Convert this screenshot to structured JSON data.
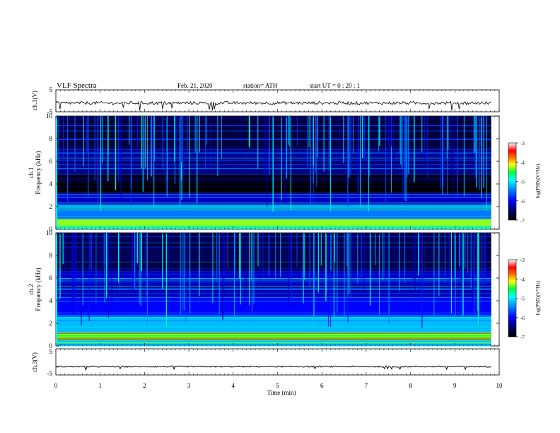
{
  "header": {
    "title": "VLF  Spectra",
    "date": "Feb. 21, 2020",
    "station": "station= ATH",
    "start": "start  UT  =    0  : 20 : 1"
  },
  "chart_data": [
    {
      "type": "line",
      "name": "ch1-waveform",
      "ylabel": "ch.1(V)",
      "ylim": [
        -5,
        5
      ],
      "yticks": [
        "5",
        "-5"
      ],
      "x_range_min": [
        0,
        9.82
      ],
      "level_v": -1.0,
      "noise_v": 0.7
    },
    {
      "type": "heatmap",
      "name": "ch1-spectrogram",
      "ylabel": "ch.1\nFrequency  (kHz)",
      "ylim": [
        0,
        10
      ],
      "yticks": [
        "0",
        "2",
        "4",
        "6",
        "8",
        "10"
      ],
      "colorbar": {
        "label": "log(PSD)(V²/Hz)",
        "ticks": [
          "-3",
          "-4",
          "-5",
          "-6",
          "-7"
        ],
        "range": [
          -7,
          -3
        ]
      },
      "bands_khz": [
        {
          "from": 0.0,
          "to": 0.3,
          "log_psd": -5.0
        },
        {
          "from": 0.3,
          "to": 0.9,
          "log_psd": -4.3
        },
        {
          "from": 0.9,
          "to": 2.2,
          "log_psd": -5.5
        },
        {
          "from": 2.2,
          "to": 3.2,
          "log_psd": -6.2
        },
        {
          "from": 3.2,
          "to": 4.9,
          "log_psd": -7.0
        },
        {
          "from": 4.9,
          "to": 7.0,
          "log_psd": -6.4
        },
        {
          "from": 7.0,
          "to": 10.0,
          "log_psd": -6.7
        }
      ]
    },
    {
      "type": "heatmap",
      "name": "ch2-spectrogram",
      "ylabel": "ch.2\nFrequency  (kHz)",
      "ylim": [
        0,
        10
      ],
      "yticks": [
        "0",
        "2",
        "4",
        "6",
        "8",
        "10"
      ],
      "colorbar": {
        "label": "log(PSD)(V²/Hz)",
        "ticks": [
          "-3",
          "-4",
          "-5",
          "-6",
          "-7"
        ],
        "range": [
          -7,
          -3
        ]
      },
      "bands_khz": [
        {
          "from": 0.0,
          "to": 0.5,
          "log_psd": -5.2
        },
        {
          "from": 0.5,
          "to": 1.2,
          "log_psd": -4.5
        },
        {
          "from": 1.2,
          "to": 2.6,
          "log_psd": -5.2
        },
        {
          "from": 2.6,
          "to": 4.2,
          "log_psd": -6.0
        },
        {
          "from": 4.2,
          "to": 6.6,
          "log_psd": -6.2
        },
        {
          "from": 6.6,
          "to": 10.0,
          "log_psd": -6.6
        }
      ]
    },
    {
      "type": "line",
      "name": "ch3-waveform",
      "ylabel": "ch.3(V)",
      "ylim": [
        -5,
        5
      ],
      "yticks": [
        "5",
        "-5"
      ],
      "x_range_min": [
        0,
        9.82
      ],
      "level_v": -1.8,
      "noise_v": 0.25
    }
  ],
  "x_axis": {
    "label": "Time  (min)",
    "range": [
      0,
      10
    ],
    "ticks": [
      "0",
      "1",
      "2",
      "3",
      "4",
      "5",
      "6",
      "7",
      "8",
      "9",
      "10"
    ]
  }
}
